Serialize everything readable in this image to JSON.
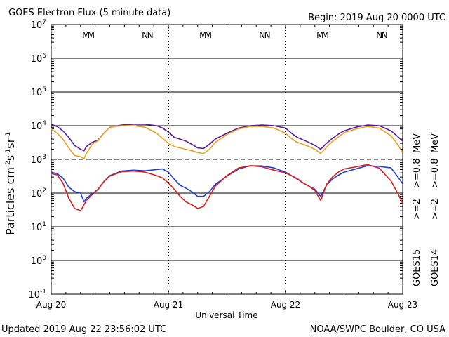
{
  "header": {
    "title": "GOES Electron Flux (5 minute data)",
    "begin": "Begin: 2019 Aug 20 0000 UTC"
  },
  "footer": {
    "updated": "Updated 2019 Aug 22 23:56:02 UTC",
    "credit": "NOAA/SWPC Boulder, CO USA"
  },
  "labels": {
    "ylabel_main": "Particles cm",
    "ylabel_sup1": "-2",
    "ylabel_mid1": "s",
    "ylabel_sup2": "-1",
    "ylabel_mid2": "sr",
    "ylabel_sup3": "-1",
    "xlabel": "Universal Time",
    "y_base": "10"
  },
  "colors": {
    "goes15_2mev": "#1f3fd6",
    "goes14_2mev": "#e01a1a",
    "goes15_08mev": "#5b1a9e",
    "goes14_08mev": "#f0a020",
    "grid": "#000000",
    "threshold": "#000000"
  },
  "chart_data": {
    "type": "line",
    "y_scale": "log",
    "ylim": [
      0.1,
      10000000
    ],
    "y_tick_exponents": [
      "7",
      "6",
      "5",
      "4",
      "3",
      "2",
      "1",
      "0",
      "-1"
    ],
    "x_tick_labels": [
      "Aug 20",
      "Aug 21",
      "Aug 22",
      "Aug 23"
    ],
    "x_days": [
      0,
      1,
      2,
      3
    ],
    "threshold": 1000,
    "mn_markers": [
      {
        "label": "M",
        "color": "#e01a1a",
        "day": 0.295
      },
      {
        "label": "M",
        "color": "#1f3fd6",
        "day": 0.34
      },
      {
        "label": "N",
        "color": "#e01a1a",
        "day": 0.8
      },
      {
        "label": "N",
        "color": "#1f3fd6",
        "day": 0.845
      },
      {
        "label": "M",
        "color": "#e01a1a",
        "day": 1.295
      },
      {
        "label": "M",
        "color": "#1f3fd6",
        "day": 1.34
      },
      {
        "label": "N",
        "color": "#e01a1a",
        "day": 1.8
      },
      {
        "label": "N",
        "color": "#1f3fd6",
        "day": 1.845
      },
      {
        "label": "M",
        "color": "#e01a1a",
        "day": 2.295
      },
      {
        "label": "M",
        "color": "#1f3fd6",
        "day": 2.34
      },
      {
        "label": "N",
        "color": "#e01a1a",
        "day": 2.8
      },
      {
        "label": "N",
        "color": "#1f3fd6",
        "day": 2.845
      }
    ],
    "legend": [
      {
        "sat": "GOES15",
        "e1": ">=2",
        "e2": ">=0.8",
        "unit": "MeV",
        "c1": "#1f3fd6",
        "c2": "#5b1a9e"
      },
      {
        "sat": "GOES14",
        "e1": ">=2",
        "e2": ">=0.8",
        "unit": "MeV",
        "c1": "#e01a1a",
        "c2": "#f0a020"
      }
    ],
    "series": [
      {
        "name": "GOES15 >=0.8 MeV",
        "color": "#5b1a9e",
        "x": [
          0,
          0.05,
          0.1,
          0.15,
          0.2,
          0.25,
          0.28,
          0.3,
          0.35,
          0.4,
          0.45,
          0.5,
          0.6,
          0.7,
          0.8,
          0.9,
          0.95,
          1.0,
          1.05,
          1.1,
          1.15,
          1.2,
          1.25,
          1.3,
          1.35,
          1.4,
          1.5,
          1.6,
          1.7,
          1.8,
          1.9,
          2.0,
          2.05,
          2.1,
          2.15,
          2.2,
          2.25,
          2.3,
          2.35,
          2.4,
          2.45,
          2.5,
          2.6,
          2.7,
          2.8,
          2.9,
          2.95,
          3.0
        ],
        "y": [
          11000,
          9500,
          7000,
          4500,
          2600,
          2000,
          1800,
          2400,
          3200,
          3800,
          6000,
          9000,
          10500,
          11000,
          11000,
          10000,
          8500,
          6500,
          4500,
          4000,
          3500,
          2800,
          2200,
          2100,
          2800,
          4000,
          6000,
          8500,
          10000,
          10500,
          10000,
          8500,
          6000,
          4500,
          3800,
          3200,
          2600,
          2000,
          3000,
          4200,
          5600,
          7000,
          9000,
          10500,
          10000,
          7000,
          5000,
          3500
        ]
      },
      {
        "name": "GOES14 >=0.8 MeV",
        "color": "#f0a020",
        "x": [
          0,
          0.05,
          0.1,
          0.15,
          0.2,
          0.25,
          0.28,
          0.3,
          0.35,
          0.4,
          0.45,
          0.5,
          0.6,
          0.7,
          0.8,
          0.9,
          0.95,
          1.0,
          1.05,
          1.1,
          1.15,
          1.2,
          1.25,
          1.3,
          1.35,
          1.4,
          1.5,
          1.6,
          1.7,
          1.8,
          1.9,
          2.0,
          2.05,
          2.1,
          2.15,
          2.2,
          2.25,
          2.3,
          2.35,
          2.4,
          2.45,
          2.5,
          2.6,
          2.7,
          2.8,
          2.9,
          2.95,
          3.0
        ],
        "y": [
          8000,
          6000,
          4000,
          2200,
          1300,
          1200,
          1050,
          1500,
          2800,
          3600,
          6000,
          9000,
          10000,
          10000,
          9000,
          6000,
          4200,
          3000,
          2400,
          2200,
          2000,
          1800,
          1600,
          1500,
          2000,
          3200,
          5500,
          8000,
          9500,
          9500,
          8500,
          6000,
          4200,
          3200,
          2800,
          2400,
          2000,
          1500,
          2300,
          3400,
          4600,
          6200,
          8000,
          9500,
          8500,
          5000,
          3000,
          1600
        ]
      },
      {
        "name": "GOES15 >=2 MeV",
        "color": "#1f3fd6",
        "x": [
          0,
          0.05,
          0.1,
          0.15,
          0.2,
          0.25,
          0.28,
          0.3,
          0.35,
          0.4,
          0.45,
          0.5,
          0.6,
          0.7,
          0.8,
          0.9,
          0.95,
          1.0,
          1.05,
          1.1,
          1.15,
          1.2,
          1.25,
          1.3,
          1.35,
          1.4,
          1.5,
          1.6,
          1.7,
          1.8,
          1.9,
          2.0,
          2.05,
          2.1,
          2.15,
          2.2,
          2.25,
          2.3,
          2.35,
          2.4,
          2.45,
          2.5,
          2.6,
          2.7,
          2.8,
          2.9,
          2.95,
          3.0
        ],
        "y": [
          420,
          380,
          280,
          150,
          110,
          100,
          55,
          70,
          95,
          130,
          220,
          330,
          450,
          480,
          460,
          500,
          520,
          420,
          260,
          170,
          140,
          110,
          80,
          80,
          110,
          180,
          320,
          520,
          650,
          640,
          560,
          420,
          330,
          260,
          200,
          160,
          130,
          80,
          170,
          260,
          340,
          420,
          520,
          650,
          620,
          560,
          330,
          190
        ]
      },
      {
        "name": "GOES14 >=2 MeV",
        "color": "#e01a1a",
        "x": [
          0,
          0.05,
          0.1,
          0.15,
          0.2,
          0.25,
          0.28,
          0.3,
          0.35,
          0.4,
          0.45,
          0.5,
          0.6,
          0.7,
          0.8,
          0.9,
          0.95,
          1.0,
          1.05,
          1.1,
          1.15,
          1.2,
          1.25,
          1.3,
          1.35,
          1.4,
          1.5,
          1.6,
          1.7,
          1.8,
          1.9,
          2.0,
          2.05,
          2.1,
          2.15,
          2.2,
          2.25,
          2.3,
          2.35,
          2.4,
          2.45,
          2.5,
          2.6,
          2.7,
          2.8,
          2.9,
          2.95,
          3.0
        ],
        "y": [
          380,
          350,
          200,
          70,
          35,
          30,
          45,
          60,
          90,
          130,
          220,
          320,
          430,
          450,
          420,
          330,
          280,
          200,
          130,
          80,
          55,
          45,
          35,
          40,
          80,
          160,
          330,
          560,
          650,
          600,
          480,
          400,
          330,
          270,
          200,
          160,
          120,
          60,
          180,
          300,
          420,
          520,
          600,
          700,
          550,
          230,
          110,
          50
        ]
      }
    ]
  }
}
